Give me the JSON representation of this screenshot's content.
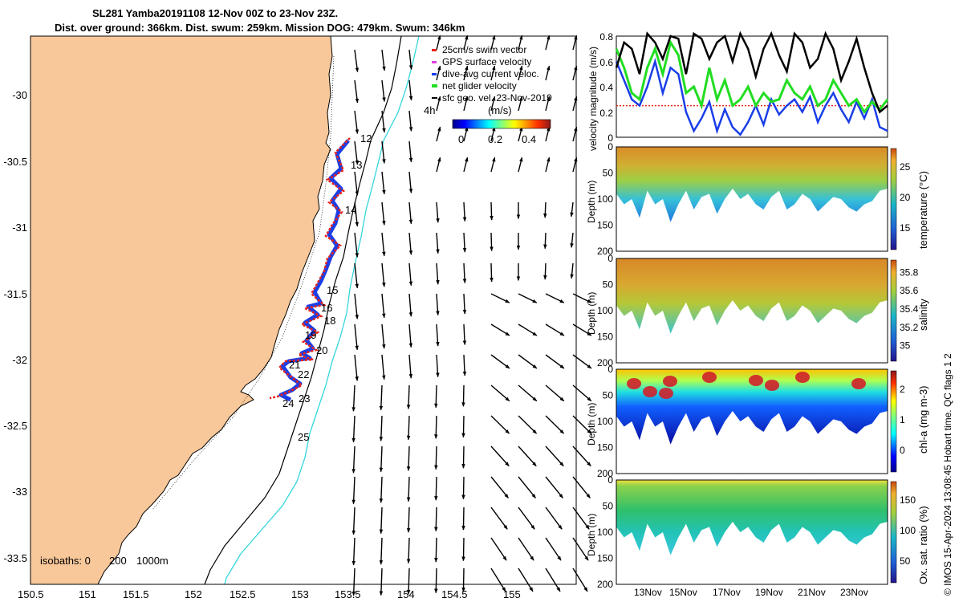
{
  "title_line1": "SL281 Yamba20191108 12-Nov 00Z to 23-Nov 23Z.",
  "title_line2": "Dist. over ground: 366km. Dist. swum: 259km. Mission DOG: 479km. Swum: 346km",
  "colors": {
    "land": "#f9c89a",
    "track_red": "#e8231a",
    "track_blue": "#1a3ee8",
    "isobath_cyan": "#33d6dc",
    "net_green": "#22dd22"
  },
  "map": {
    "x_ticks": [
      "150.5",
      "151",
      "151.5",
      "152",
      "152.5",
      "153",
      "153.5",
      "154",
      "154.5",
      "155"
    ],
    "y_ticks": [
      "-30",
      "-30.5",
      "-31",
      "-31.5",
      "-32",
      "-32.5",
      "-33",
      "-33.5"
    ],
    "day_labels": [
      "12",
      "13",
      "14",
      "15",
      "16",
      "18",
      "19",
      "20",
      "21",
      "22",
      "23",
      "24",
      "25"
    ],
    "isobaths_label": "isobaths: 0",
    "isobath_200": "200",
    "isobath_1000": "1000m",
    "time_label": "4h",
    "legend": [
      {
        "label": "25cm/s swim vector",
        "color": "#e8231a"
      },
      {
        "label": "GPS surface velocity",
        "color": "#e040e0"
      },
      {
        "label": "dive-avg current veloc.",
        "color": "#1a3ee8"
      },
      {
        "label": "net glider velocity",
        "color": "#22dd22"
      },
      {
        "label": "sfc geo. vel. 23-Nov-2019",
        "color": "#000000"
      }
    ],
    "colorbar_title": "(m/s)",
    "colorbar_ticks": [
      "0",
      "0.2",
      "0.4"
    ]
  },
  "chart_data": [
    {
      "type": "line",
      "title": "",
      "ylabel": "velocity magnitude (m/s)",
      "ylim": [
        0,
        0.8
      ],
      "y_ticks": [
        "0",
        "0.2",
        "0.4",
        "0.6",
        "0.8"
      ],
      "series": [
        {
          "name": "sfc geo. vel.",
          "color": "#000000",
          "values": [
            0.55,
            0.75,
            0.7,
            0.5,
            0.82,
            0.75,
            0.62,
            0.8,
            0.78,
            0.5,
            0.82,
            0.78,
            0.62,
            0.75,
            0.8,
            0.6,
            0.82,
            0.7,
            0.48,
            0.7,
            0.82,
            0.65,
            0.52,
            0.82,
            0.75,
            0.55,
            0.62,
            0.82,
            0.7,
            0.45,
            0.6,
            0.78,
            0.55,
            0.35,
            0.2,
            0.25
          ]
        },
        {
          "name": "net glider velocity",
          "color": "#22dd22",
          "values": [
            0.7,
            0.55,
            0.35,
            0.3,
            0.55,
            0.7,
            0.5,
            0.75,
            0.65,
            0.35,
            0.4,
            0.25,
            0.55,
            0.3,
            0.45,
            0.25,
            0.3,
            0.4,
            0.25,
            0.35,
            0.28,
            0.3,
            0.45,
            0.35,
            0.3,
            0.4,
            0.25,
            0.3,
            0.45,
            0.35,
            0.25,
            0.3,
            0.2,
            0.28,
            0.22,
            0.3
          ]
        },
        {
          "name": "dive-avg current",
          "color": "#1a3ee8",
          "values": [
            0.6,
            0.45,
            0.3,
            0.25,
            0.4,
            0.6,
            0.35,
            0.55,
            0.5,
            0.2,
            0.05,
            0.15,
            0.28,
            0.05,
            0.22,
            0.08,
            0.02,
            0.12,
            0.25,
            0.1,
            0.3,
            0.18,
            0.25,
            0.3,
            0.2,
            0.32,
            0.12,
            0.25,
            0.35,
            0.22,
            0.12,
            0.28,
            0.15,
            0.3,
            0.08,
            0.05
          ]
        },
        {
          "name": "swim",
          "color": "#e8231a",
          "values": [
            0.25,
            0.25,
            0.25,
            0.25,
            0.25,
            0.25,
            0.25,
            0.25,
            0.25,
            0.25,
            0.25,
            0.25,
            0.25,
            0.25,
            0.25,
            0.25,
            0.25,
            0.25,
            0.25,
            0.25,
            0.25,
            0.25,
            0.25,
            0.25,
            0.25,
            0.25,
            0.25,
            0.25,
            0.25,
            0.25,
            0.25,
            0.25,
            0.25,
            0.25,
            0.25,
            0.25
          ]
        }
      ]
    },
    {
      "type": "heatmap",
      "ylabel": "Depth (m)",
      "y_ticks": [
        "0",
        "50",
        "100",
        "150",
        "200"
      ],
      "colorbar_label": "temperature (°C)",
      "colorbar_ticks": [
        "15",
        "20",
        "25"
      ]
    },
    {
      "type": "heatmap",
      "ylabel": "Depth (m)",
      "y_ticks": [
        "0",
        "50",
        "100",
        "150",
        "200"
      ],
      "colorbar_label": "salinity",
      "colorbar_ticks": [
        "35",
        "35.2",
        "35.4",
        "35.6",
        "35.8"
      ]
    },
    {
      "type": "heatmap",
      "ylabel": "Depth (m)",
      "y_ticks": [
        "0",
        "50",
        "100",
        "150",
        "200"
      ],
      "colorbar_label": "chl-a (mg m-3)",
      "colorbar_ticks": [
        "0",
        "1",
        "2"
      ]
    },
    {
      "type": "heatmap",
      "ylabel": "Depth (m)",
      "y_ticks": [
        "0",
        "50",
        "100",
        "150",
        "200"
      ],
      "colorbar_label": "Ox. sat. ratio (%)",
      "colorbar_ticks": [
        "50",
        "100",
        "150"
      ],
      "x_ticks": [
        "13Nov",
        "15Nov",
        "17Nov",
        "19Nov",
        "21Nov",
        "23Nov"
      ]
    }
  ],
  "side_note": "© IMOS 15-Apr-2024 13:08:45 Hobart time. QC flags 1  2"
}
